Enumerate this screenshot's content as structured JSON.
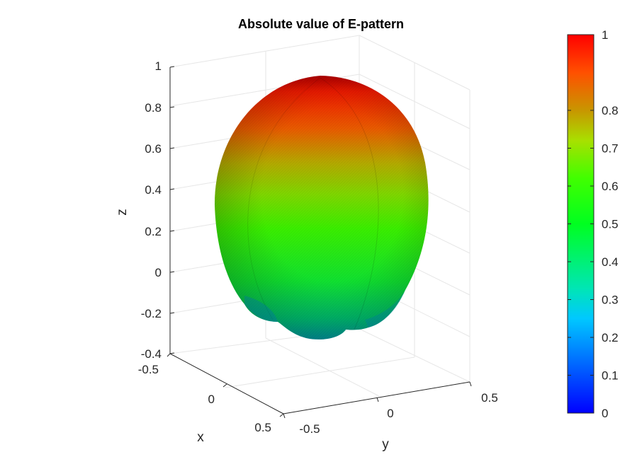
{
  "chart_data": {
    "type": "surface",
    "title": "Absolute value of E-pattern",
    "xlabel": "x",
    "ylabel": "y",
    "zlabel": "z",
    "grid": true,
    "x_ticks": [
      "-0.5",
      "0",
      "0.5"
    ],
    "y_ticks": [
      "-0.5",
      "0",
      "0.5"
    ],
    "z_ticks": [
      "-0.4",
      "-0.2",
      "0",
      "0.2",
      "0.4",
      "0.6",
      "0.8",
      "1"
    ],
    "xlim": [
      -0.5,
      0.5
    ],
    "ylim": [
      -0.5,
      0.5
    ],
    "zlim": [
      -0.4,
      1
    ],
    "colorbar": {
      "colormap": "hsv-like",
      "ticks": [
        "0",
        "0.1",
        "0.2",
        "0.3",
        "0.4",
        "0.5",
        "0.6",
        "0.7",
        "0.8",
        "1"
      ],
      "range": [
        0,
        1
      ],
      "stops": [
        "#0000ff",
        "#0072ff",
        "#00e6b4",
        "#00ff3a",
        "#22ff00",
        "#9be600",
        "#c89600",
        "#ff5000",
        "#ff0000"
      ]
    },
    "surface_color_range": [
      0.2,
      1
    ]
  }
}
